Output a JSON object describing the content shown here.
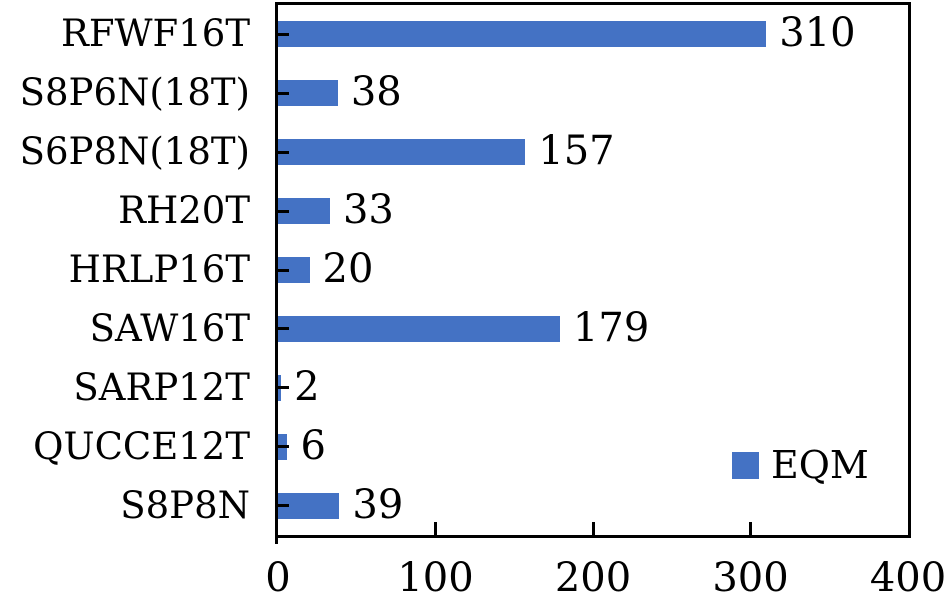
{
  "chart_data": {
    "type": "bar",
    "orientation": "horizontal",
    "title": "",
    "xlabel": "",
    "ylabel": "",
    "categories": [
      "RFWF16T",
      "S8P6N(18T)",
      "S6P8N(18T)",
      "RH20T",
      "HRLP16T",
      "SAW16T",
      "SARP12T",
      "QUCCE12T",
      "S8P8N"
    ],
    "series": [
      {
        "name": "EQM",
        "values": [
          310,
          38,
          157,
          33,
          20,
          179,
          2,
          6,
          39
        ]
      }
    ],
    "data_labels": [
      310,
      38,
      157,
      33,
      20,
      179,
      2,
      6,
      39
    ],
    "xlim": [
      0,
      400
    ],
    "xticks": [
      0,
      100,
      200,
      300,
      400
    ],
    "grid": false,
    "legend": {
      "label": "EQM",
      "position": "inside-bottom-right"
    },
    "colors": {
      "bar": "#4472C4",
      "axis": "#000000",
      "text": "#000000",
      "background": "#FFFFFF"
    }
  }
}
